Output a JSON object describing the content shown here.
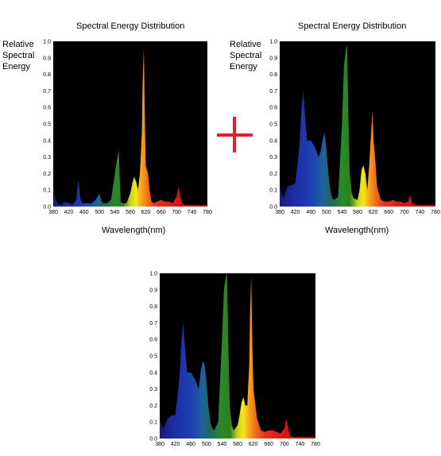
{
  "panel_top_left": {
    "title": "Spectral Energy Distribution",
    "ylabel_lines": [
      "Relative",
      "Spectral",
      "Energy"
    ],
    "xlabel": "Wavelength(nm)"
  },
  "panel_top_right": {
    "title": "Spectral Energy Distribution",
    "ylabel_lines": [
      "Relative",
      "Spectral",
      "Energy"
    ],
    "xlabel": "Wavelength(nm)"
  },
  "plus_symbol_color": "#e0202e",
  "chart_data": [
    {
      "type": "area",
      "panel": "top-left",
      "title": "Spectral Energy Distribution",
      "xlabel": "Wavelength(nm)",
      "ylabel": "Relative Spectral Energy",
      "xlim": [
        380,
        780
      ],
      "ylim": [
        0,
        1.0
      ],
      "x_ticks": [
        380,
        420,
        460,
        500,
        540,
        580,
        620,
        660,
        700,
        740,
        780
      ],
      "y_ticks": [
        0.0,
        0.1,
        0.2,
        0.3,
        0.4,
        0.5,
        0.6,
        0.7,
        0.8,
        0.9,
        1.0
      ],
      "background": "#000000",
      "series": [
        {
          "x": [
            380,
            383,
            390,
            400,
            410,
            420,
            430,
            440,
            445,
            450,
            455,
            460,
            470,
            480,
            490,
            500,
            505,
            510,
            520,
            530,
            540,
            545,
            550,
            555,
            560,
            570,
            580,
            585,
            590,
            595,
            600,
            605,
            610,
            612,
            615,
            618,
            620,
            623,
            626,
            630,
            635,
            640,
            650,
            660,
            670,
            680,
            690,
            700,
            705,
            710,
            715,
            720,
            730,
            740,
            750,
            760,
            770,
            780
          ],
          "y": [
            0.01,
            0.08,
            0.02,
            0.01,
            0.03,
            0.02,
            0.01,
            0.04,
            0.16,
            0.05,
            0.02,
            0.02,
            0.02,
            0.02,
            0.04,
            0.08,
            0.03,
            0.02,
            0.02,
            0.04,
            0.2,
            0.28,
            0.34,
            0.03,
            0.02,
            0.02,
            0.08,
            0.14,
            0.18,
            0.15,
            0.1,
            0.2,
            0.45,
            0.75,
            0.96,
            0.5,
            0.25,
            0.22,
            0.2,
            0.1,
            0.03,
            0.02,
            0.03,
            0.04,
            0.03,
            0.03,
            0.02,
            0.06,
            0.12,
            0.06,
            0.02,
            0.01,
            0.01,
            0.01,
            0.01,
            0.01,
            0.01,
            0.01
          ]
        }
      ]
    },
    {
      "type": "area",
      "panel": "top-right",
      "title": "Spectral Energy Distribution",
      "xlabel": "Wavelength(nm)",
      "ylabel": "Relative Spectral Energy",
      "xlim": [
        380,
        780
      ],
      "ylim": [
        0,
        1.0
      ],
      "x_ticks": [
        380,
        420,
        460,
        500,
        540,
        580,
        620,
        660,
        700,
        740,
        780
      ],
      "y_ticks": [
        0.0,
        0.1,
        0.2,
        0.3,
        0.4,
        0.5,
        0.6,
        0.7,
        0.8,
        0.9,
        1.0
      ],
      "background": "#000000",
      "series": [
        {
          "x": [
            380,
            385,
            390,
            400,
            410,
            420,
            430,
            435,
            440,
            445,
            450,
            460,
            470,
            475,
            480,
            485,
            490,
            495,
            500,
            505,
            510,
            515,
            520,
            530,
            540,
            545,
            550,
            553,
            556,
            560,
            565,
            570,
            580,
            585,
            590,
            595,
            600,
            605,
            610,
            615,
            618,
            621,
            625,
            630,
            640,
            650,
            660,
            670,
            680,
            690,
            700,
            710,
            715,
            720,
            730,
            740,
            760,
            780
          ],
          "y": [
            0.12,
            0.08,
            0.05,
            0.12,
            0.13,
            0.14,
            0.35,
            0.55,
            0.7,
            0.55,
            0.4,
            0.4,
            0.36,
            0.33,
            0.3,
            0.33,
            0.4,
            0.45,
            0.35,
            0.2,
            0.1,
            0.05,
            0.04,
            0.06,
            0.5,
            0.85,
            0.95,
            0.98,
            0.6,
            0.2,
            0.08,
            0.05,
            0.04,
            0.1,
            0.22,
            0.25,
            0.2,
            0.1,
            0.25,
            0.45,
            0.58,
            0.4,
            0.3,
            0.12,
            0.04,
            0.03,
            0.03,
            0.04,
            0.03,
            0.03,
            0.02,
            0.03,
            0.07,
            0.02,
            0.01,
            0.01,
            0.01,
            0.01
          ]
        }
      ]
    },
    {
      "type": "area",
      "panel": "bottom",
      "xlim": [
        380,
        780
      ],
      "ylim": [
        0,
        1.0
      ],
      "x_ticks": [
        380,
        420,
        460,
        500,
        540,
        580,
        620,
        660,
        700,
        740,
        780
      ],
      "y_ticks": [
        0.0,
        0.1,
        0.2,
        0.3,
        0.4,
        0.5,
        0.6,
        0.7,
        0.8,
        0.9,
        1.0
      ],
      "background": "#000000",
      "series": [
        {
          "x": [
            380,
            385,
            390,
            400,
            410,
            420,
            430,
            435,
            440,
            445,
            450,
            460,
            470,
            475,
            480,
            485,
            490,
            495,
            500,
            505,
            510,
            515,
            520,
            530,
            540,
            545,
            550,
            553,
            556,
            560,
            565,
            570,
            580,
            585,
            590,
            595,
            600,
            605,
            610,
            612,
            615,
            618,
            621,
            625,
            630,
            640,
            650,
            660,
            670,
            680,
            690,
            700,
            705,
            710,
            715,
            720,
            730,
            740,
            760,
            780
          ],
          "y": [
            0.12,
            0.08,
            0.06,
            0.12,
            0.14,
            0.14,
            0.35,
            0.55,
            0.7,
            0.55,
            0.4,
            0.4,
            0.36,
            0.33,
            0.3,
            0.4,
            0.47,
            0.45,
            0.35,
            0.2,
            0.1,
            0.06,
            0.05,
            0.1,
            0.6,
            0.9,
            0.98,
            1.0,
            0.6,
            0.2,
            0.08,
            0.05,
            0.08,
            0.14,
            0.22,
            0.25,
            0.2,
            0.2,
            0.45,
            0.75,
            0.98,
            0.55,
            0.3,
            0.22,
            0.12,
            0.05,
            0.04,
            0.05,
            0.05,
            0.04,
            0.03,
            0.06,
            0.12,
            0.06,
            0.02,
            0.01,
            0.01,
            0.01,
            0.01,
            0.01
          ]
        }
      ]
    }
  ]
}
